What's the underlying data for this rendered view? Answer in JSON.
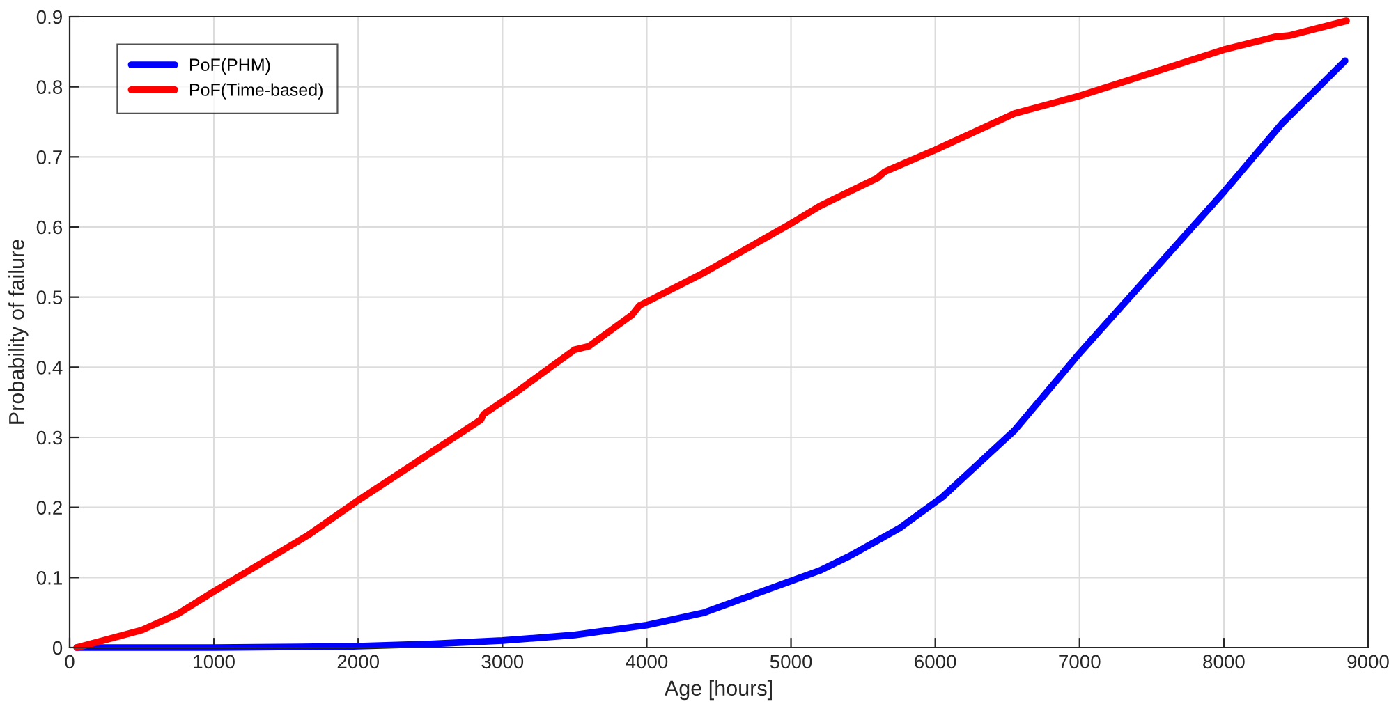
{
  "chart_data": {
    "type": "line",
    "xlabel": "Age [hours]",
    "ylabel": "Probability of failure",
    "xlim": [
      0,
      9000
    ],
    "xticks": [
      0,
      1000,
      2000,
      3000,
      4000,
      5000,
      6000,
      7000,
      8000,
      9000
    ],
    "ylim": [
      0,
      0.9
    ],
    "yticks": [
      0,
      0.1,
      0.2,
      0.3,
      0.4,
      0.5,
      0.6,
      0.7,
      0.8,
      0.9
    ],
    "grid": true,
    "legend": "top left",
    "line_style": "solid",
    "marker": "none",
    "series": [
      {
        "name": "PoF(PHM)",
        "color": "#0000ff",
        "x": [
          50,
          1000,
          1600,
          2000,
          2500,
          3000,
          3500,
          4000,
          4400,
          5000,
          5200,
          5400,
          5750,
          6050,
          6550,
          7000,
          7500,
          8000,
          8400,
          8840
        ],
        "values": [
          0,
          0,
          0.001,
          0.002,
          0.005,
          0.01,
          0.018,
          0.032,
          0.05,
          0.095,
          0.11,
          0.13,
          0.17,
          0.215,
          0.31,
          0.42,
          0.535,
          0.65,
          0.747,
          0.837
        ]
      },
      {
        "name": "PoF(Time-based)",
        "color": "#ff0000",
        "x": [
          50,
          500,
          750,
          1000,
          1650,
          2000,
          2850,
          2870,
          3100,
          3500,
          3600,
          3900,
          3950,
          4400,
          5000,
          5200,
          5400,
          5600,
          5650,
          6000,
          6550,
          7000,
          7500,
          8000,
          8350,
          8450,
          8850
        ],
        "values": [
          0,
          0.025,
          0.048,
          0.08,
          0.16,
          0.21,
          0.325,
          0.333,
          0.365,
          0.425,
          0.43,
          0.475,
          0.488,
          0.535,
          0.605,
          0.63,
          0.65,
          0.67,
          0.679,
          0.71,
          0.762,
          0.787,
          0.82,
          0.853,
          0.871,
          0.873,
          0.894
        ]
      }
    ]
  }
}
